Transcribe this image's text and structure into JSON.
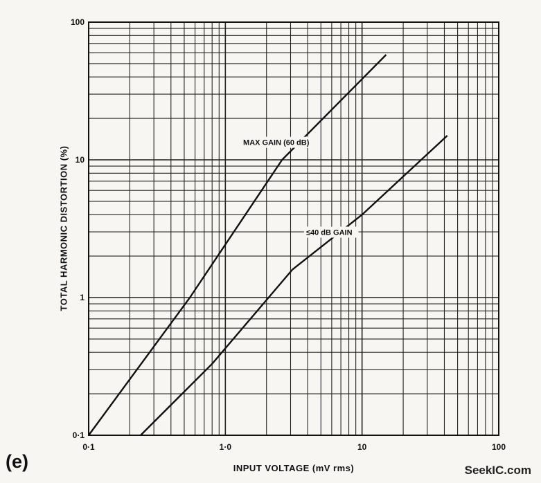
{
  "chart_data": {
    "type": "line",
    "x_scale": "log",
    "y_scale": "log",
    "xlim": [
      0.1,
      100
    ],
    "ylim": [
      0.1,
      100
    ],
    "xlabel": "INPUT VOLTAGE  (mV rms)",
    "ylabel": "TOTAL HARMONIC DISTORTION  (%)",
    "x_ticks": [
      "0·1",
      "1·0",
      "10",
      "100"
    ],
    "y_ticks": [
      "0·1",
      "1",
      "10",
      "100"
    ],
    "grid": true,
    "series": [
      {
        "name": "MAX GAIN (60 dB)",
        "points": [
          [
            0.1,
            0.1
          ],
          [
            0.55,
            1.0
          ],
          [
            2.6,
            10
          ],
          [
            15,
            58
          ]
        ]
      },
      {
        "name": "≤40 dB GAIN",
        "points": [
          [
            0.24,
            0.1
          ],
          [
            0.8,
            0.33
          ],
          [
            3.1,
            1.6
          ],
          [
            10,
            4.0
          ],
          [
            42,
            15
          ]
        ]
      }
    ]
  },
  "panel_label": "(e)",
  "watermark": "SeekIC.com"
}
